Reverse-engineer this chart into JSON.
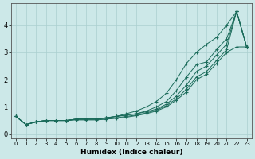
{
  "xlabel": "Humidex (Indice chaleur)",
  "ylabel": "",
  "bg_color": "#cce8e8",
  "line_color": "#1a6b5a",
  "grid_color": "#aacfcf",
  "xlim": [
    -0.5,
    23.5
  ],
  "ylim": [
    -0.15,
    4.8
  ],
  "xticks": [
    0,
    1,
    2,
    3,
    4,
    5,
    6,
    7,
    8,
    9,
    10,
    11,
    12,
    13,
    14,
    15,
    16,
    17,
    18,
    19,
    20,
    21,
    22,
    23
  ],
  "yticks": [
    0,
    1,
    2,
    3,
    4
  ],
  "lines": [
    {
      "x": [
        0,
        1,
        2,
        3,
        4,
        5,
        6,
        7,
        8,
        9,
        10,
        11,
        12,
        13,
        14,
        15,
        16,
        17,
        18,
        19,
        20,
        21,
        22,
        23
      ],
      "y": [
        0.65,
        0.35,
        0.45,
        0.5,
        0.5,
        0.5,
        0.55,
        0.55,
        0.55,
        0.6,
        0.65,
        0.75,
        0.85,
        1.0,
        1.2,
        1.5,
        2.0,
        2.6,
        3.0,
        3.3,
        3.55,
        4.0,
        4.5,
        3.2
      ]
    },
    {
      "x": [
        0,
        1,
        2,
        3,
        4,
        5,
        6,
        7,
        8,
        9,
        10,
        11,
        12,
        13,
        14,
        15,
        16,
        17,
        18,
        19,
        20,
        21,
        22,
        23
      ],
      "y": [
        0.65,
        0.35,
        0.45,
        0.5,
        0.5,
        0.5,
        0.55,
        0.55,
        0.55,
        0.6,
        0.65,
        0.7,
        0.75,
        0.85,
        1.0,
        1.2,
        1.6,
        2.1,
        2.55,
        2.65,
        3.1,
        3.5,
        4.5,
        3.2
      ]
    },
    {
      "x": [
        0,
        1,
        2,
        3,
        4,
        5,
        6,
        7,
        8,
        9,
        10,
        11,
        12,
        13,
        14,
        15,
        16,
        17,
        18,
        19,
        20,
        21,
        22,
        23
      ],
      "y": [
        0.65,
        0.35,
        0.45,
        0.5,
        0.5,
        0.5,
        0.55,
        0.55,
        0.55,
        0.6,
        0.65,
        0.7,
        0.75,
        0.82,
        0.92,
        1.1,
        1.4,
        1.8,
        2.3,
        2.5,
        2.9,
        3.3,
        4.5,
        3.2
      ]
    },
    {
      "x": [
        0,
        1,
        2,
        3,
        4,
        5,
        6,
        7,
        8,
        9,
        10,
        11,
        12,
        13,
        14,
        15,
        16,
        17,
        18,
        19,
        20,
        21,
        22,
        23
      ],
      "y": [
        0.65,
        0.35,
        0.45,
        0.5,
        0.5,
        0.5,
        0.55,
        0.55,
        0.55,
        0.55,
        0.6,
        0.65,
        0.7,
        0.78,
        0.88,
        1.05,
        1.3,
        1.65,
        2.1,
        2.3,
        2.7,
        3.1,
        4.5,
        3.2
      ]
    },
    {
      "x": [
        0,
        1,
        2,
        3,
        4,
        5,
        6,
        7,
        8,
        9,
        10,
        11,
        12,
        13,
        14,
        15,
        16,
        17,
        18,
        19,
        20,
        21,
        22,
        23
      ],
      "y": [
        0.65,
        0.35,
        0.45,
        0.5,
        0.5,
        0.5,
        0.52,
        0.52,
        0.52,
        0.55,
        0.58,
        0.62,
        0.68,
        0.75,
        0.85,
        1.0,
        1.25,
        1.55,
        2.0,
        2.2,
        2.6,
        3.0,
        3.2,
        3.2
      ]
    }
  ]
}
